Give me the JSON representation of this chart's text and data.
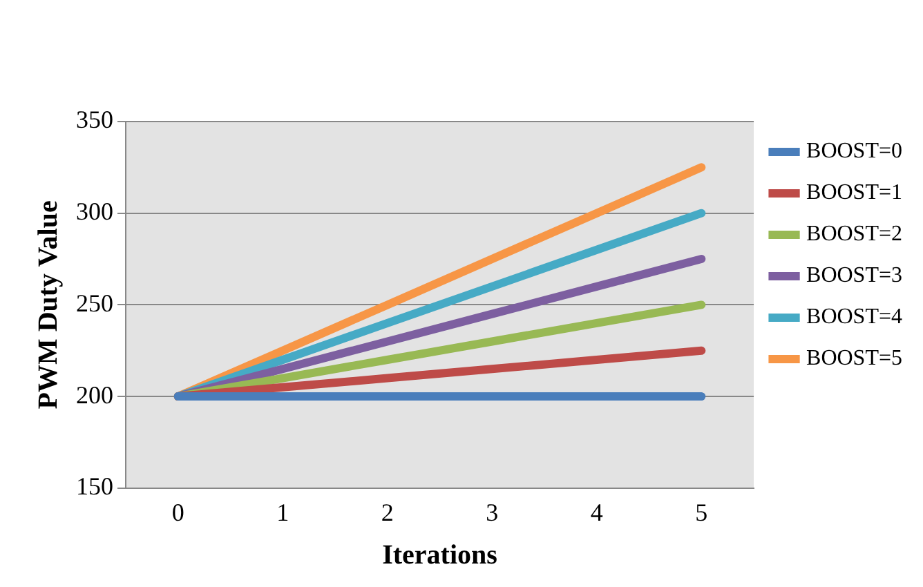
{
  "chart_data": {
    "type": "line",
    "xlabel": "Iterations",
    "ylabel": "PWM Duty Value",
    "categories": [
      "0",
      "1",
      "2",
      "3",
      "4",
      "5"
    ],
    "series": [
      {
        "name": "BOOST=0",
        "color": "#4a7ebb",
        "values": [
          200,
          200,
          200,
          200,
          200,
          200
        ]
      },
      {
        "name": "BOOST=1",
        "color": "#be4b48",
        "values": [
          200,
          205,
          210,
          215,
          220,
          225
        ]
      },
      {
        "name": "BOOST=2",
        "color": "#98b954",
        "values": [
          200,
          210,
          220,
          230,
          240,
          250
        ]
      },
      {
        "name": "BOOST=3",
        "color": "#7d5fa0",
        "values": [
          200,
          215,
          230,
          245,
          260,
          275
        ]
      },
      {
        "name": "BOOST=4",
        "color": "#46aac5",
        "values": [
          200,
          220,
          240,
          260,
          280,
          300
        ]
      },
      {
        "name": "BOOST=5",
        "color": "#f79646",
        "values": [
          200,
          225,
          250,
          275,
          300,
          325
        ]
      }
    ],
    "ylim": [
      150,
      350
    ],
    "yticks": [
      150,
      200,
      250,
      300,
      350
    ],
    "grid": "y",
    "legend": "right",
    "marker": "none",
    "line_style": "solid"
  }
}
